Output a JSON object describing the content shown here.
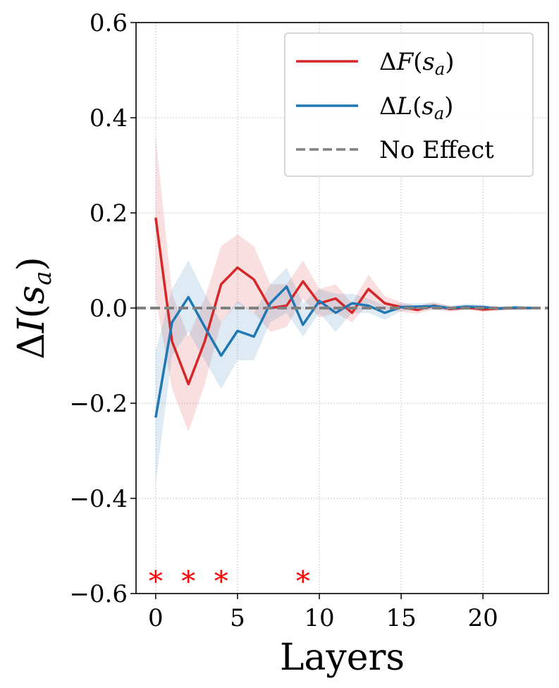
{
  "chart_data": {
    "type": "line",
    "xlabel": "Layers",
    "ylabel_parts": {
      "delta": "Δ",
      "var": "I",
      "open": "(",
      "s": "s",
      "sub": "a",
      "close": ")"
    },
    "xlim": [
      -1.2,
      24
    ],
    "ylim": [
      -0.6,
      0.6
    ],
    "x_ticks": [
      0,
      5,
      10,
      15,
      20
    ],
    "x_tick_labels": [
      "0",
      "5",
      "10",
      "15",
      "20"
    ],
    "y_ticks": [
      -0.6,
      -0.4,
      -0.2,
      0.0,
      0.2,
      0.4,
      0.6
    ],
    "y_tick_labels": [
      "−0.6",
      "−0.4",
      "−0.2",
      "0.0",
      "0.2",
      "0.4",
      "0.6"
    ],
    "grid": true,
    "legend_position": "top-right",
    "series": [
      {
        "name": "ΔF(s_a)",
        "label_parts": {
          "delta": "Δ",
          "var": "F",
          "open": "(",
          "s": "s",
          "sub": "a",
          "close": ")"
        },
        "color": "#d62728",
        "x": [
          0,
          1,
          2,
          3,
          4,
          5,
          6,
          7,
          8,
          9,
          10,
          11,
          12,
          13,
          14,
          15,
          16,
          17,
          18,
          19,
          20,
          21,
          22,
          23
        ],
        "values": [
          0.19,
          -0.07,
          -0.16,
          -0.07,
          0.05,
          0.085,
          0.06,
          0.0,
          0.005,
          0.056,
          0.01,
          0.02,
          -0.01,
          0.04,
          0.01,
          0.002,
          -0.004,
          0.005,
          -0.002,
          0.001,
          -0.003,
          -0.001,
          0.0,
          0.0
        ],
        "band_lower": [
          0.02,
          -0.17,
          -0.26,
          -0.16,
          -0.03,
          0.01,
          -0.01,
          -0.05,
          -0.04,
          0.02,
          -0.02,
          -0.01,
          -0.03,
          0.01,
          -0.005,
          -0.008,
          -0.012,
          -0.003,
          -0.008,
          -0.004,
          -0.008,
          -0.005,
          -0.004,
          -0.003
        ],
        "band_upper": [
          0.36,
          0.03,
          -0.06,
          0.02,
          0.13,
          0.155,
          0.13,
          0.05,
          0.05,
          0.1,
          0.04,
          0.05,
          0.01,
          0.07,
          0.025,
          0.012,
          0.004,
          0.013,
          0.004,
          0.006,
          0.002,
          0.003,
          0.004,
          0.003
        ]
      },
      {
        "name": "ΔL(s_a)",
        "label_parts": {
          "delta": "Δ",
          "var": "L",
          "open": "(",
          "s": "s",
          "sub": "a",
          "close": ")"
        },
        "color": "#1f77b4",
        "x": [
          0,
          1,
          2,
          3,
          4,
          5,
          6,
          7,
          8,
          9,
          10,
          11,
          12,
          13,
          14,
          15,
          16,
          17,
          18,
          19,
          20,
          21,
          22,
          23
        ],
        "values": [
          -0.23,
          -0.03,
          0.023,
          -0.04,
          -0.1,
          -0.048,
          -0.06,
          0.01,
          0.045,
          -0.035,
          0.015,
          -0.01,
          0.01,
          0.005,
          -0.01,
          0.002,
          0.003,
          0.004,
          0.0,
          0.003,
          0.002,
          -0.001,
          0.001,
          0.0
        ],
        "band_lower": [
          -0.37,
          -0.1,
          -0.05,
          -0.11,
          -0.17,
          -0.11,
          -0.11,
          -0.03,
          -0.01,
          -0.06,
          -0.01,
          -0.05,
          -0.01,
          -0.01,
          -0.025,
          -0.006,
          -0.004,
          -0.003,
          -0.005,
          -0.003,
          -0.003,
          -0.005,
          -0.003,
          -0.003
        ],
        "band_upper": [
          -0.09,
          0.04,
          0.1,
          0.03,
          -0.03,
          0.015,
          -0.01,
          0.05,
          0.085,
          0.01,
          0.04,
          0.03,
          0.03,
          0.02,
          0.005,
          0.01,
          0.01,
          0.011,
          0.005,
          0.009,
          0.007,
          0.003,
          0.005,
          0.003
        ]
      },
      {
        "name": "No Effect",
        "color": "#808080",
        "style": "dashed",
        "value": 0.0
      }
    ],
    "significance_markers": {
      "symbol": "*",
      "color": "#ff0000",
      "x": [
        0,
        2,
        4,
        9
      ],
      "y": -0.565
    }
  }
}
